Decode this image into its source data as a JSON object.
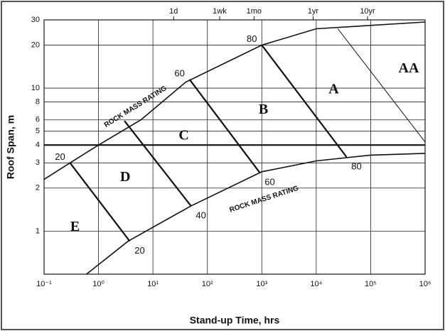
{
  "chart_data": {
    "type": "line",
    "x_label": "Stand-up Time, hrs",
    "y_label": "Roof Span, m",
    "log_x": true,
    "log_y": true,
    "grid": true,
    "xlim": [
      0.1,
      1000000
    ],
    "ylim": [
      0.5,
      30
    ],
    "xticks": [
      {
        "value": 0.1,
        "label": "10⁻¹"
      },
      {
        "value": 1,
        "label": "10⁰"
      },
      {
        "value": 10,
        "label": "10¹"
      },
      {
        "value": 100,
        "label": "10²"
      },
      {
        "value": 1000,
        "label": "10³"
      },
      {
        "value": 10000,
        "label": "10⁴"
      },
      {
        "value": 100000,
        "label": "10⁵"
      },
      {
        "value": 1000000,
        "label": "10⁶"
      }
    ],
    "x2ticks": [
      {
        "value": 24,
        "label": "1d"
      },
      {
        "value": 168,
        "label": "1wk"
      },
      {
        "value": 720,
        "label": "1mo"
      },
      {
        "value": 8760,
        "label": "1yr"
      },
      {
        "value": 87600,
        "label": "10yr"
      }
    ],
    "yticks": [
      1,
      2,
      3,
      4,
      5,
      6,
      8,
      10,
      20,
      30
    ],
    "color": "#111111",
    "series": [
      {
        "x": [
          0.1,
          0.3,
          1,
          6,
          40,
          1000,
          10000,
          1000000
        ],
        "values": [
          2.3,
          3,
          4,
          6,
          11,
          20,
          26,
          29
        ]
      },
      {
        "x": [
          0.6,
          3.5,
          50,
          1000,
          10000,
          100000,
          1000000
        ],
        "values": [
          0.5,
          0.85,
          1.5,
          2.6,
          3.1,
          3.4,
          3.5
        ]
      }
    ],
    "reference_lines": [
      {
        "value": 4
      }
    ],
    "rmr_lines": [
      {
        "label": "20",
        "label_at": [
          "start",
          "end"
        ],
        "x": [
          0.3,
          3.75
        ],
        "values": [
          3,
          0.85
        ]
      },
      {
        "label": "40",
        "label_at": [
          "end"
        ],
        "x": [
          3,
          50
        ],
        "values": [
          5.9,
          1.5
        ]
      },
      {
        "label": "60",
        "label_at": [
          "start",
          "end"
        ],
        "x": [
          47,
          920
        ],
        "values": [
          11.5,
          2.56
        ]
      },
      {
        "label": "80",
        "label_at": [
          "start",
          "end"
        ],
        "x": [
          1000,
          36000
        ],
        "values": [
          20,
          3.3
        ]
      },
      {
        "x": [
          25000,
          1000000
        ],
        "values": [
          26,
          4.2
        ]
      }
    ],
    "annotations": [
      {
        "text": "A",
        "x": 21000,
        "y": 9.7
      },
      {
        "text": "AA",
        "x": 500000,
        "y": 13.6
      },
      {
        "text": "B",
        "x": 1070,
        "y": 7
      },
      {
        "text": "C",
        "x": 37,
        "y": 4.6
      },
      {
        "text": "D",
        "x": 3.1,
        "y": 2.36
      },
      {
        "text": "E",
        "x": 0.37,
        "y": 1.06
      },
      {
        "text": "ROCK MASS RATING",
        "x": 4.8,
        "y": 7.4
      },
      {
        "text": "ROCK MASS RATING",
        "x": 1100,
        "y": 1.67
      }
    ]
  }
}
